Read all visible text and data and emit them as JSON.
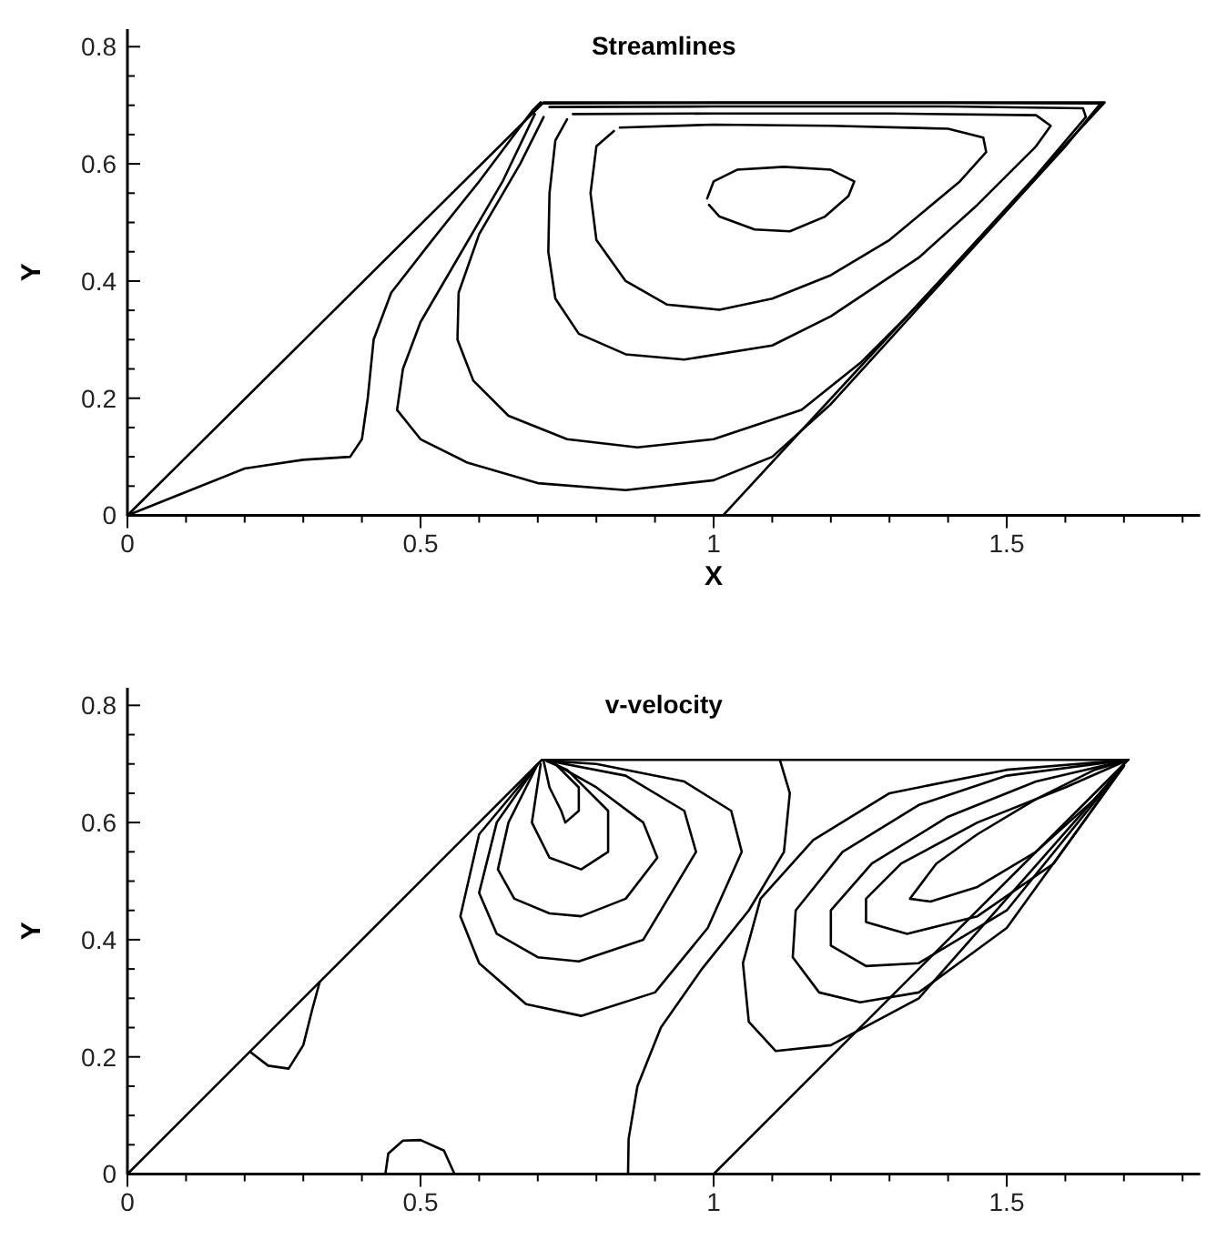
{
  "chart_data": [
    {
      "type": "line",
      "title": "Streamlines",
      "xlabel": "X",
      "ylabel": "Y",
      "xlim": [
        0,
        1.83
      ],
      "ylim": [
        0,
        0.83
      ],
      "xticks": [
        0,
        {
          "value": 0.1,
          "label": null
        },
        {
          "value": 0.2,
          "label": null
        },
        {
          "value": 0.3,
          "label": null
        },
        {
          "value": 0.4,
          "label": null
        },
        0.5,
        {
          "value": 0.6,
          "label": null
        },
        {
          "value": 0.7,
          "label": null
        },
        {
          "value": 0.8,
          "label": null
        },
        {
          "value": 0.9,
          "label": null
        },
        1,
        {
          "value": 1.1,
          "label": null
        },
        {
          "value": 1.2,
          "label": null
        },
        {
          "value": 1.3,
          "label": null
        },
        {
          "value": 1.4,
          "label": null
        },
        1.5,
        {
          "value": 1.6,
          "label": null
        },
        {
          "value": 1.7,
          "label": null
        },
        {
          "value": 1.8,
          "label": null
        }
      ],
      "yticks": [
        0,
        {
          "value": 0.05,
          "label": null
        },
        {
          "value": 0.1,
          "label": null
        },
        {
          "value": 0.15,
          "label": null
        },
        0.2,
        {
          "value": 0.25,
          "label": null
        },
        {
          "value": 0.3,
          "label": null
        },
        {
          "value": 0.35,
          "label": null
        },
        0.4,
        {
          "value": 0.45,
          "label": null
        },
        {
          "value": 0.5,
          "label": null
        },
        {
          "value": 0.55,
          "label": null
        },
        0.6,
        {
          "value": 0.65,
          "label": null
        },
        {
          "value": 0.7,
          "label": null
        },
        {
          "value": 0.75,
          "label": null
        },
        0.8
      ],
      "series": [
        {
          "color": "#000000",
          "x": [
            0,
            0.71,
            1.667,
            1.016
          ],
          "values": [
            0,
            0.705,
            0.705,
            0
          ]
        },
        {
          "color": "#000000",
          "x": [
            0.989,
            1.0,
            1.04,
            1.12,
            1.2,
            1.24,
            1.23,
            1.19,
            1.13,
            1.07,
            1.01,
            0.992
          ],
          "values": [
            0.541,
            0.57,
            0.59,
            0.595,
            0.59,
            0.57,
            0.545,
            0.51,
            0.485,
            0.488,
            0.51,
            0.53
          ]
        },
        {
          "color": "#000000",
          "x": [
            0.84,
            1.0,
            1.2,
            1.4,
            1.46,
            1.465,
            1.42,
            1.3,
            1.2,
            1.1,
            1.01,
            0.92,
            0.85,
            0.8,
            0.79,
            0.8,
            0.83
          ],
          "values": [
            0.662,
            0.667,
            0.665,
            0.66,
            0.645,
            0.62,
            0.57,
            0.47,
            0.41,
            0.37,
            0.351,
            0.36,
            0.4,
            0.47,
            0.55,
            0.63,
            0.656
          ]
        },
        {
          "color": "#000000",
          "x": [
            0.76,
            1.0,
            1.3,
            1.55,
            1.575,
            1.55,
            1.45,
            1.35,
            1.2,
            1.1,
            0.95,
            0.85,
            0.77,
            0.73,
            0.718,
            0.72,
            0.73,
            0.75
          ],
          "values": [
            0.685,
            0.686,
            0.686,
            0.683,
            0.665,
            0.63,
            0.53,
            0.44,
            0.34,
            0.29,
            0.266,
            0.275,
            0.31,
            0.37,
            0.45,
            0.55,
            0.64,
            0.676
          ]
        },
        {
          "color": "#000000",
          "x": [
            0.72,
            1.0,
            1.4,
            1.63,
            1.635,
            1.55,
            1.45,
            1.35,
            1.25,
            1.15,
            1.0,
            0.87,
            0.75,
            0.65,
            0.59,
            0.563,
            0.565,
            0.6,
            0.67,
            0.71
          ],
          "values": [
            0.697,
            0.698,
            0.698,
            0.695,
            0.68,
            0.58,
            0.47,
            0.36,
            0.26,
            0.18,
            0.13,
            0.116,
            0.13,
            0.17,
            0.23,
            0.3,
            0.38,
            0.48,
            0.6,
            0.68
          ]
        },
        {
          "color": "#000000",
          "x": [
            0.705,
            1.0,
            1.4,
            1.66,
            1.6,
            1.5,
            1.4,
            1.3,
            1.2,
            1.1,
            1.0,
            0.85,
            0.7,
            0.58,
            0.5,
            0.46,
            0.47,
            0.5,
            0.57,
            0.64,
            0.695
          ],
          "values": [
            0.703,
            0.704,
            0.704,
            0.703,
            0.63,
            0.52,
            0.41,
            0.3,
            0.19,
            0.1,
            0.06,
            0.043,
            0.055,
            0.09,
            0.13,
            0.18,
            0.25,
            0.33,
            0.45,
            0.57,
            0.685
          ]
        },
        {
          "color": "#000000",
          "x": [
            0,
            0.1,
            0.2,
            0.3,
            0.38,
            0.4,
            0.41,
            0.42,
            0.45,
            0.52,
            0.6,
            0.69,
            0.705
          ],
          "values": [
            0,
            0.04,
            0.08,
            0.095,
            0.1,
            0.13,
            0.2,
            0.3,
            0.38,
            0.47,
            0.57,
            0.69,
            0.705
          ]
        }
      ]
    },
    {
      "type": "line",
      "title": "v-velocity",
      "ylabel": "Y",
      "xlim": [
        0,
        1.83
      ],
      "ylim": [
        0,
        0.83
      ],
      "xticks": [
        0,
        {
          "value": 0.1,
          "label": null
        },
        {
          "value": 0.2,
          "label": null
        },
        {
          "value": 0.3,
          "label": null
        },
        {
          "value": 0.4,
          "label": null
        },
        0.5,
        {
          "value": 0.6,
          "label": null
        },
        {
          "value": 0.7,
          "label": null
        },
        {
          "value": 0.8,
          "label": null
        },
        {
          "value": 0.9,
          "label": null
        },
        1,
        {
          "value": 1.1,
          "label": null
        },
        {
          "value": 1.2,
          "label": null
        },
        {
          "value": 1.3,
          "label": null
        },
        {
          "value": 1.4,
          "label": null
        },
        1.5,
        {
          "value": 1.6,
          "label": null
        },
        {
          "value": 1.7,
          "label": null
        },
        {
          "value": 1.8,
          "label": null
        }
      ],
      "yticks": [
        0,
        {
          "value": 0.05,
          "label": null
        },
        {
          "value": 0.1,
          "label": null
        },
        {
          "value": 0.15,
          "label": null
        },
        0.2,
        {
          "value": 0.25,
          "label": null
        },
        {
          "value": 0.3,
          "label": null
        },
        {
          "value": 0.35,
          "label": null
        },
        0.4,
        {
          "value": 0.45,
          "label": null
        },
        {
          "value": 0.5,
          "label": null
        },
        {
          "value": 0.55,
          "label": null
        },
        0.6,
        {
          "value": 0.65,
          "label": null
        },
        {
          "value": 0.7,
          "label": null
        },
        {
          "value": 0.75,
          "label": null
        },
        0.8
      ],
      "series": [
        {
          "color": "#000000",
          "x": [
            0,
            0.707,
            1.707,
            1.0
          ],
          "values": [
            0,
            0.707,
            0.707,
            0
          ]
        },
        {
          "color": "#000000",
          "x": [
            0.71,
            0.72,
            0.74,
            0.747,
            0.77,
            0.77,
            0.73
          ],
          "values": [
            0.705,
            0.66,
            0.62,
            0.6,
            0.62,
            0.66,
            0.7
          ]
        },
        {
          "color": "#000000",
          "x": [
            0.705,
            0.69,
            0.72,
            0.774,
            0.82,
            0.82,
            0.75,
            0.715
          ],
          "values": [
            0.7,
            0.6,
            0.54,
            0.52,
            0.55,
            0.62,
            0.69,
            0.705
          ]
        },
        {
          "color": "#000000",
          "x": [
            0.7,
            0.65,
            0.632,
            0.66,
            0.72,
            0.774,
            0.85,
            0.904,
            0.88,
            0.8,
            0.72
          ],
          "values": [
            0.7,
            0.6,
            0.52,
            0.47,
            0.445,
            0.44,
            0.47,
            0.54,
            0.6,
            0.66,
            0.705
          ]
        },
        {
          "color": "#000000",
          "x": [
            0.7,
            0.63,
            0.6,
            0.63,
            0.7,
            0.77,
            0.88,
            0.97,
            0.95,
            0.85,
            0.72
          ],
          "values": [
            0.7,
            0.6,
            0.48,
            0.41,
            0.37,
            0.363,
            0.4,
            0.55,
            0.62,
            0.68,
            0.705
          ]
        },
        {
          "color": "#000000",
          "x": [
            0.7,
            0.6,
            0.568,
            0.6,
            0.68,
            0.774,
            0.9,
            0.99,
            1.048,
            1.03,
            0.95,
            0.8,
            0.72
          ],
          "values": [
            0.7,
            0.58,
            0.44,
            0.36,
            0.29,
            0.27,
            0.31,
            0.42,
            0.55,
            0.62,
            0.67,
            0.7,
            0.705
          ]
        },
        {
          "color": "#000000",
          "x": [
            1.113,
            1.13,
            1.12,
            1.06,
            0.98,
            0.91,
            0.87,
            0.855,
            0.854
          ],
          "values": [
            0.707,
            0.65,
            0.55,
            0.45,
            0.35,
            0.25,
            0.15,
            0.06,
            0
          ]
        },
        {
          "color": "#000000",
          "x": [
            1.707,
            1.65,
            1.55,
            1.45,
            1.38,
            1.335,
            1.37,
            1.45,
            1.55,
            1.65,
            1.7
          ],
          "values": [
            0.707,
            0.69,
            0.64,
            0.58,
            0.53,
            0.47,
            0.465,
            0.49,
            0.55,
            0.64,
            0.698
          ]
        },
        {
          "color": "#000000",
          "x": [
            1.707,
            1.6,
            1.45,
            1.32,
            1.26,
            1.26,
            1.33,
            1.45,
            1.58,
            1.7
          ],
          "values": [
            0.707,
            0.66,
            0.6,
            0.53,
            0.47,
            0.43,
            0.41,
            0.44,
            0.53,
            0.697
          ]
        },
        {
          "color": "#000000",
          "x": [
            1.707,
            1.55,
            1.4,
            1.27,
            1.2,
            1.2,
            1.26,
            1.35,
            1.5,
            1.7
          ],
          "values": [
            0.707,
            0.67,
            0.61,
            0.53,
            0.45,
            0.39,
            0.355,
            0.36,
            0.45,
            0.697
          ]
        },
        {
          "color": "#000000",
          "x": [
            1.707,
            1.5,
            1.35,
            1.22,
            1.14,
            1.135,
            1.18,
            1.25,
            1.35,
            1.5,
            1.7
          ],
          "values": [
            0.707,
            0.68,
            0.63,
            0.55,
            0.45,
            0.37,
            0.31,
            0.293,
            0.31,
            0.42,
            0.697
          ]
        },
        {
          "color": "#000000",
          "x": [
            1.707,
            1.5,
            1.3,
            1.17,
            1.08,
            1.05,
            1.06,
            1.106,
            1.2,
            1.35,
            1.7
          ],
          "values": [
            0.707,
            0.69,
            0.65,
            0.57,
            0.47,
            0.36,
            0.26,
            0.21,
            0.22,
            0.3,
            0.697
          ]
        },
        {
          "color": "#000000",
          "x": [
            0.209,
            0.24,
            0.275,
            0.3,
            0.315,
            0.328
          ],
          "values": [
            0.209,
            0.185,
            0.18,
            0.22,
            0.28,
            0.328
          ]
        },
        {
          "color": "#000000",
          "x": [
            0.44,
            0.445,
            0.47,
            0.5,
            0.54,
            0.558
          ],
          "values": [
            0,
            0.035,
            0.057,
            0.058,
            0.04,
            0
          ]
        }
      ]
    }
  ]
}
